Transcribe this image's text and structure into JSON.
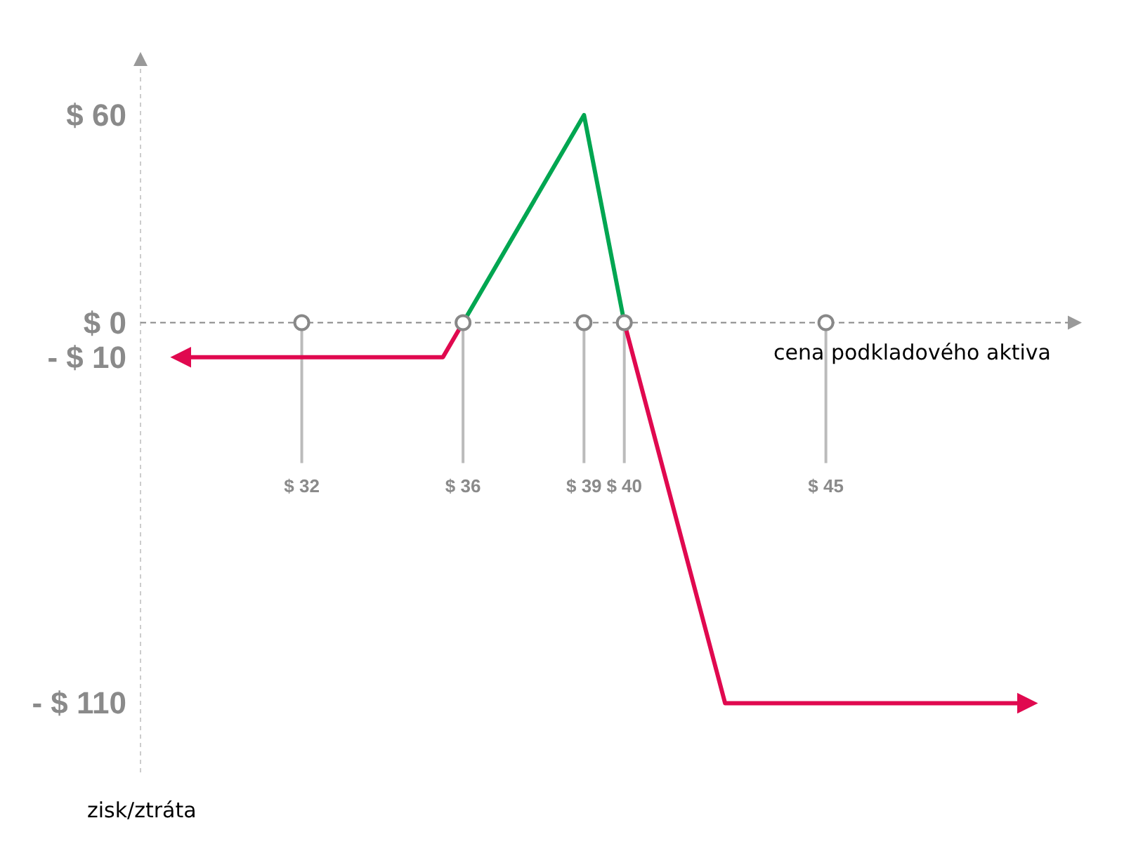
{
  "chart_data": {
    "type": "line",
    "xlabel": "cena podkladového aktiva",
    "ylabel": "zisk/ztráta",
    "xlim": [
      28,
      51
    ],
    "ylim": [
      -130,
      75
    ],
    "xticks": [
      {
        "value": 32,
        "label": "$ 32"
      },
      {
        "value": 36,
        "label": "$ 36"
      },
      {
        "value": 39,
        "label": "$ 39"
      },
      {
        "value": 40,
        "label": "$ 40"
      },
      {
        "value": 45,
        "label": "$ 45"
      }
    ],
    "yticks": [
      {
        "value": 60,
        "label": "$ 60"
      },
      {
        "value": 0,
        "label": "$ 0"
      },
      {
        "value": -10,
        "label": "- $ 10"
      },
      {
        "value": -110,
        "label": "- $ 110"
      }
    ],
    "series": [
      {
        "color": "#e0094f",
        "x": [
          29,
          35.5,
          36
        ],
        "values": [
          -10,
          -10,
          0
        ]
      },
      {
        "color": "#00a651",
        "x": [
          36,
          39,
          40
        ],
        "values": [
          0,
          60,
          0
        ]
      },
      {
        "color": "#e0094f",
        "x": [
          40,
          42.5,
          50
        ],
        "values": [
          0,
          -110,
          -110
        ]
      }
    ]
  }
}
